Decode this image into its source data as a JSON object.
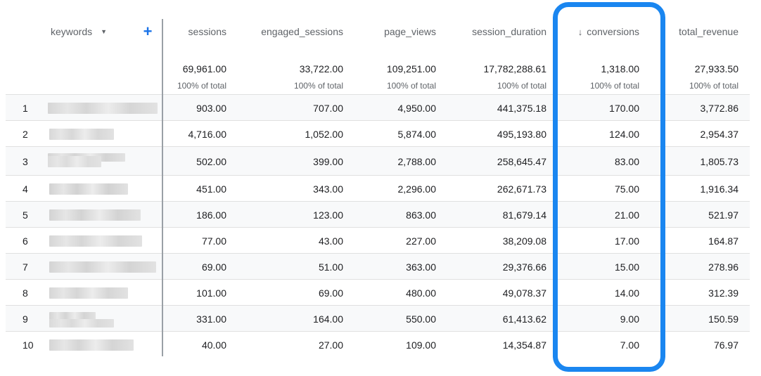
{
  "headers": {
    "keywords": "keywords",
    "add": "+",
    "sort_arrow": "↓",
    "columns": [
      "sessions",
      "engaged_sessions",
      "page_views",
      "session_duration",
      "conversions",
      "total_revenue"
    ]
  },
  "totals": {
    "values": [
      "69,961.00",
      "33,722.00",
      "109,251.00",
      "17,782,288.61",
      "1,318.00",
      "27,933.50"
    ],
    "sublabel": "100% of total"
  },
  "rows": [
    {
      "rank": "1",
      "values": [
        "903.00",
        "707.00",
        "4,950.00",
        "441,375.18",
        "170.00",
        "3,772.86"
      ]
    },
    {
      "rank": "2",
      "values": [
        "4,716.00",
        "1,052.00",
        "5,874.00",
        "495,193.80",
        "124.00",
        "2,954.37"
      ]
    },
    {
      "rank": "3",
      "values": [
        "502.00",
        "399.00",
        "2,788.00",
        "258,645.47",
        "83.00",
        "1,805.73"
      ]
    },
    {
      "rank": "4",
      "values": [
        "451.00",
        "343.00",
        "2,296.00",
        "262,671.73",
        "75.00",
        "1,916.34"
      ]
    },
    {
      "rank": "5",
      "values": [
        "186.00",
        "123.00",
        "863.00",
        "81,679.14",
        "21.00",
        "521.97"
      ]
    },
    {
      "rank": "6",
      "values": [
        "77.00",
        "43.00",
        "227.00",
        "38,209.08",
        "17.00",
        "164.87"
      ]
    },
    {
      "rank": "7",
      "values": [
        "69.00",
        "51.00",
        "363.00",
        "29,376.66",
        "15.00",
        "278.96"
      ]
    },
    {
      "rank": "8",
      "values": [
        "101.00",
        "69.00",
        "480.00",
        "49,078.37",
        "14.00",
        "312.39"
      ]
    },
    {
      "rank": "9",
      "values": [
        "331.00",
        "164.00",
        "550.00",
        "61,413.62",
        "9.00",
        "150.59"
      ]
    },
    {
      "rank": "10",
      "values": [
        "40.00",
        "27.00",
        "109.00",
        "14,354.87",
        "7.00",
        "76.97"
      ]
    }
  ],
  "colors": {
    "highlight": "#1a86f0",
    "plus": "#1a73e8",
    "redacted": "#cfcfcf"
  }
}
